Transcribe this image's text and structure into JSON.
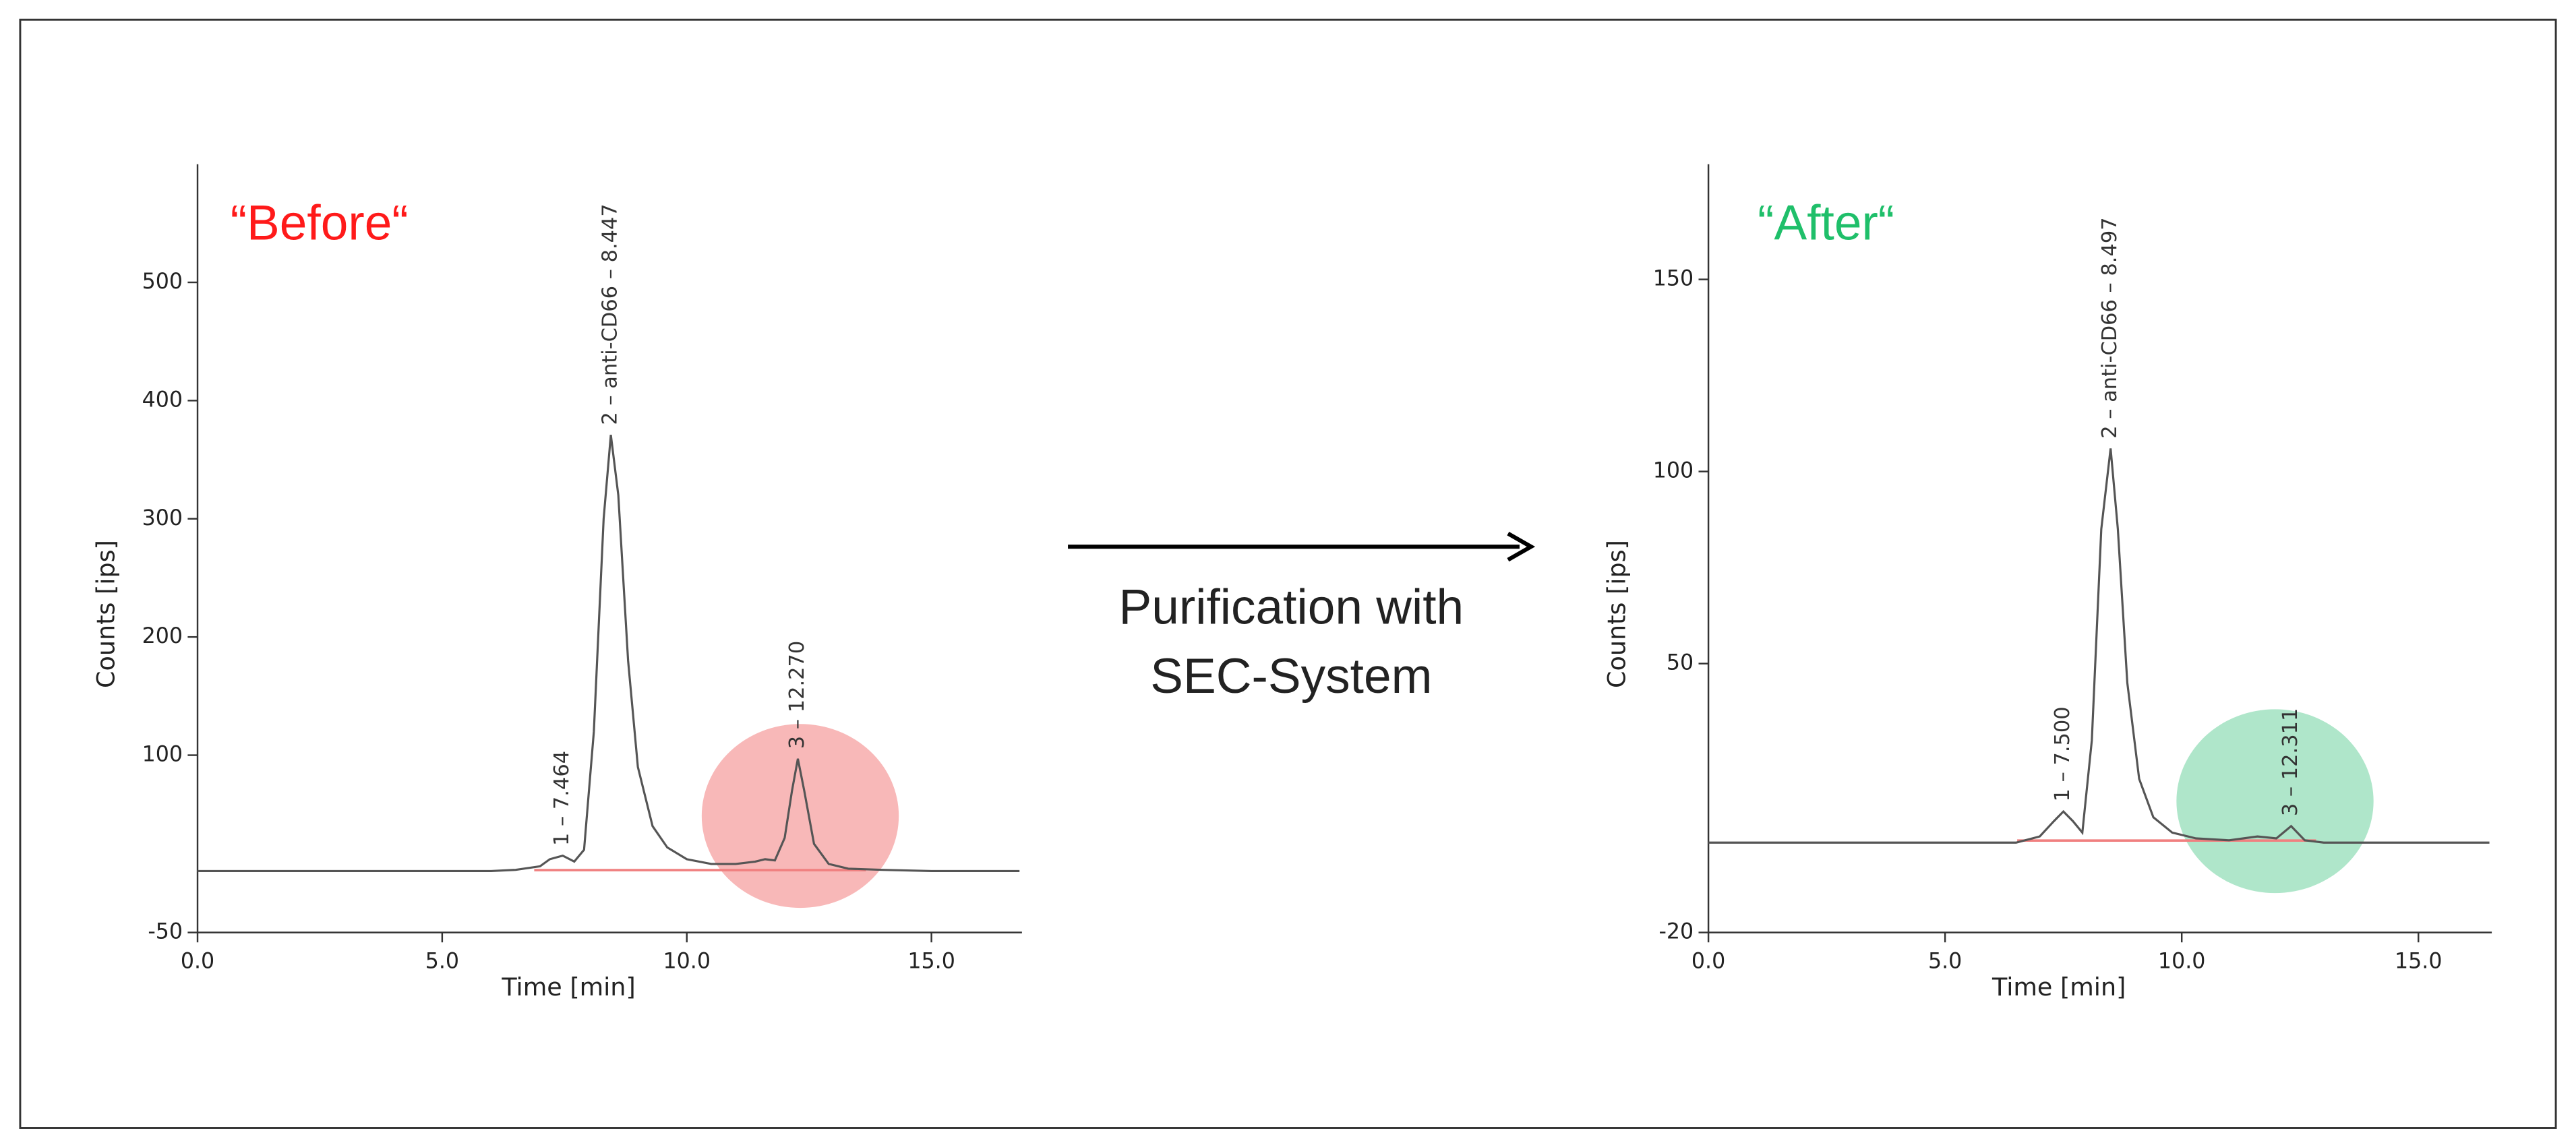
{
  "chart_data": [
    {
      "type": "line",
      "title": "“Before“",
      "title_color": "#ff1a1a",
      "x_label": "Time [min]",
      "y_label": "Counts [ips]",
      "x": [
        0,
        1,
        2,
        3,
        4,
        5,
        6,
        6.5,
        7,
        7.2,
        7.464,
        7.7,
        7.9,
        8.1,
        8.3,
        8.447,
        8.6,
        8.8,
        9.0,
        9.3,
        9.6,
        10,
        10.5,
        11,
        11.4,
        11.6,
        11.8,
        12.0,
        12.15,
        12.27,
        12.4,
        12.6,
        12.9,
        13.3,
        14,
        15,
        16,
        16.8
      ],
      "values": [
        2,
        2,
        2,
        2,
        2,
        2,
        2,
        3,
        6,
        12,
        15,
        10,
        20,
        120,
        300,
        371,
        320,
        180,
        90,
        40,
        22,
        12,
        8,
        8,
        10,
        12,
        11,
        30,
        70,
        97,
        70,
        25,
        8,
        4,
        3,
        2,
        2,
        2
      ],
      "color": "#555555",
      "xlim": [
        0,
        16.85
      ],
      "ylim": [
        -50,
        600
      ],
      "xticks": [
        {
          "value": 0,
          "label": "0.0"
        },
        {
          "value": 5,
          "label": "5.0"
        },
        {
          "value": 10,
          "label": "10.0"
        },
        {
          "value": 15,
          "label": "15.0"
        }
      ],
      "yticks": [
        -50,
        100,
        200,
        300,
        400,
        500
      ],
      "annotations": [
        {
          "text": "1 – 7.464",
          "x": 7.464
        },
        {
          "text": "2 – anti-CD66 – 8.447",
          "x": 8.447
        },
        {
          "text": "3 – 12.270",
          "x": 12.27
        }
      ],
      "highlight_color": "#f59a9a"
    },
    {
      "type": "line",
      "title": "“After“",
      "title_color": "#1fbf6a",
      "x_label": "Time [min]",
      "y_label": "Counts [ips]",
      "x": [
        0,
        1,
        2,
        3,
        4,
        5,
        6,
        6.5,
        7.0,
        7.3,
        7.5,
        7.7,
        7.9,
        8.1,
        8.3,
        8.497,
        8.65,
        8.85,
        9.1,
        9.4,
        9.8,
        10.3,
        11,
        11.6,
        12.0,
        12.311,
        12.6,
        13,
        14,
        15,
        16.5
      ],
      "values": [
        3.4,
        3.4,
        3.4,
        3.4,
        3.4,
        3.4,
        3.4,
        3.4,
        5,
        9,
        11.5,
        9,
        6,
        30,
        85,
        106,
        85,
        45,
        20,
        10,
        6,
        4.5,
        4,
        5,
        4.5,
        7.7,
        4,
        3.4,
        3.4,
        3.4,
        3.4
      ],
      "color": "#555555",
      "xlim": [
        0,
        16.55
      ],
      "ylim": [
        -20,
        180
      ],
      "xticks": [
        {
          "value": 0,
          "label": "0.0"
        },
        {
          "value": 5,
          "label": "5.0"
        },
        {
          "value": 10,
          "label": "10.0"
        },
        {
          "value": 15,
          "label": "15.0"
        }
      ],
      "yticks": [
        -20,
        50,
        100,
        150
      ],
      "annotations": [
        {
          "text": "1 – 7.500",
          "x": 7.5
        },
        {
          "text": "2 – anti-CD66 – 8.497",
          "x": 8.497
        },
        {
          "text": "3 – 12.311",
          "x": 12.311
        }
      ],
      "highlight_color": "#8ddbb4"
    }
  ],
  "arrow_label": [
    "Purification with",
    "SEC-System"
  ]
}
